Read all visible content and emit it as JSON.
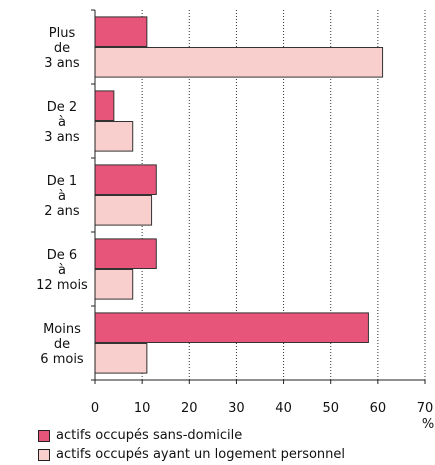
{
  "chart_data": {
    "type": "bar",
    "orientation": "horizontal",
    "categories": [
      "Plus\nde\n3 ans",
      "De 2\nà\n3 ans",
      "De 1\nà\n2 ans",
      "De 6\nà\n12 mois",
      "Moins\nde\n6 mois"
    ],
    "series": [
      {
        "name": "actifs occupés sans-domicile",
        "values": [
          11,
          4,
          13,
          13,
          58
        ],
        "color": "#E8557A"
      },
      {
        "name": "actifs occupés ayant un logement personnel",
        "values": [
          61,
          8,
          12,
          8,
          11
        ],
        "color": "#F9CFCD"
      }
    ],
    "x_ticks": [
      "0",
      "10",
      "20",
      "30",
      "40",
      "50",
      "60",
      "70"
    ],
    "xlim": [
      0,
      70
    ],
    "xlabel": "%",
    "grid": "vertical dotted",
    "legend_position": "bottom"
  }
}
